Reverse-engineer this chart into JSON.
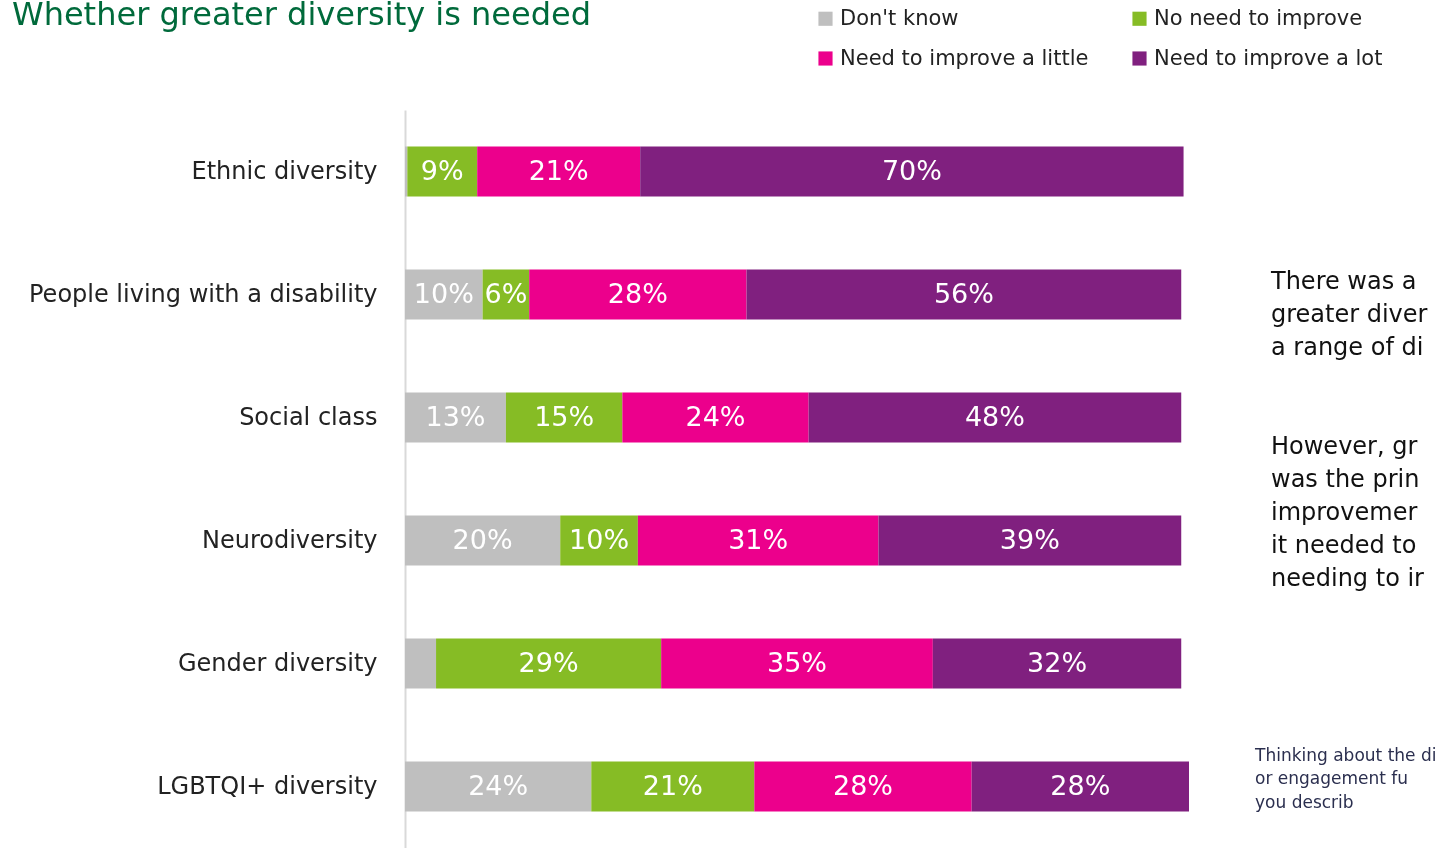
{
  "chart_data": {
    "type": "bar",
    "orientation": "horizontal",
    "stacked": true,
    "title": "Whether greater diversity is needed",
    "categories": [
      "Ethnic diversity",
      "People living with a disability",
      "Social class",
      "Neurodiversity",
      "Gender diversity",
      "LGBTQI+ diversity"
    ],
    "series": [
      {
        "name": "Don't know",
        "color": "#bfbfbf",
        "values": [
          0.3,
          10,
          13,
          20,
          4,
          24
        ],
        "value_labels": [
          null,
          "10%",
          "13%",
          "20%",
          null,
          "24%"
        ]
      },
      {
        "name": "No need to improve",
        "color": "#86bc25",
        "values": [
          9,
          6,
          15,
          10,
          29,
          21
        ],
        "value_labels": [
          "9%",
          "6%",
          "15%",
          "10%",
          "29%",
          "21%"
        ]
      },
      {
        "name": "Need to improve a little",
        "color": "#ec008c",
        "values": [
          21,
          28,
          24,
          31,
          35,
          28
        ],
        "value_labels": [
          "21%",
          "28%",
          "24%",
          "31%",
          "35%",
          "28%"
        ]
      },
      {
        "name": "Need to improve a lot",
        "color": "#80207f",
        "values": [
          70,
          56,
          48,
          39,
          32,
          28
        ],
        "value_labels": [
          "70%",
          "56%",
          "48%",
          "39%",
          "32%",
          "28%"
        ]
      }
    ],
    "legend": "top right",
    "annotations": [
      "There was a\ngreater diver\na range of di",
      "However, gr\nwas the prin\nimprovemer\nit needed to\nneeding to ir",
      "Thinking about the di\nor engagement fu\nyou describ"
    ]
  }
}
